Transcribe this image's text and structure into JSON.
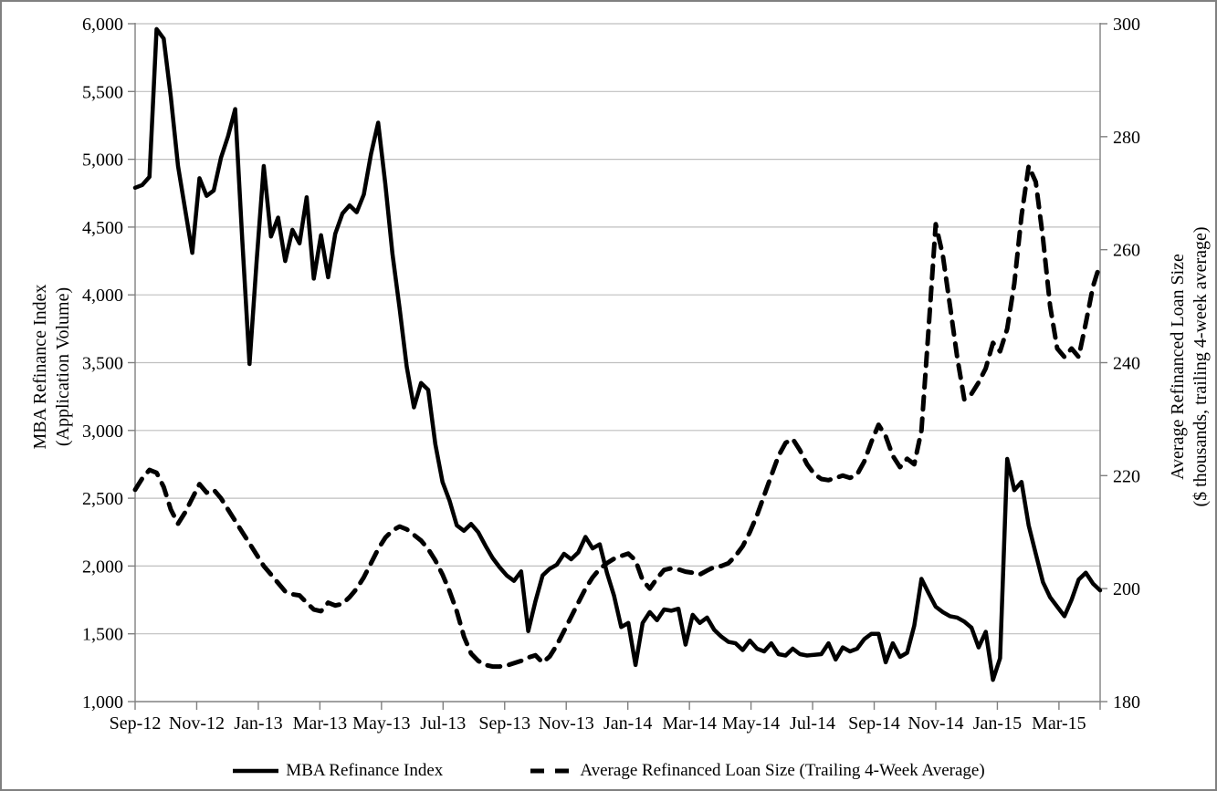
{
  "chart_data": {
    "type": "line",
    "title": "",
    "x_unit": "week",
    "x_range_label": "Sep-2012 through early Apr-2015, weekly observations",
    "x_tick_labels": [
      "Sep-12",
      "Nov-12",
      "Jan-13",
      "Mar-13",
      "May-13",
      "Jul-13",
      "Sep-13",
      "Nov-13",
      "Jan-14",
      "Mar-14",
      "May-14",
      "Jul-14",
      "Sep-14",
      "Nov-14",
      "Jan-15",
      "Mar-15"
    ],
    "grid": "horizontal",
    "legend_position": "bottom",
    "left_axis": {
      "title_line1": "MBA Refinance Index",
      "title_line2": "(Application Volume)",
      "min": 1000,
      "max": 6000,
      "step": 500,
      "tick_labels": [
        "1,000",
        "1,500",
        "2,000",
        "2,500",
        "3,000",
        "3,500",
        "4,000",
        "4,500",
        "5,000",
        "5,500",
        "6,000"
      ]
    },
    "right_axis": {
      "title_line1": "Average Refinanced Loan Size",
      "title_line2": "($ thousands, trailing 4-week average)",
      "min": 180,
      "max": 300,
      "step": 20,
      "tick_labels": [
        "180",
        "200",
        "220",
        "240",
        "260",
        "280",
        "300"
      ]
    },
    "series": [
      {
        "name": "MBA Refinance Index",
        "axis": "left",
        "style": "solid",
        "color": "#000000",
        "values": [
          4790,
          4810,
          4870,
          5960,
          5890,
          5460,
          4950,
          4630,
          4310,
          4860,
          4730,
          4770,
          5010,
          5170,
          5370,
          4400,
          3490,
          4250,
          4950,
          4430,
          4570,
          4250,
          4480,
          4380,
          4720,
          4120,
          4440,
          4130,
          4450,
          4600,
          4660,
          4610,
          4740,
          5040,
          5270,
          4820,
          4300,
          3900,
          3470,
          3170,
          3350,
          3300,
          2900,
          2620,
          2480,
          2300,
          2260,
          2310,
          2250,
          2150,
          2060,
          1990,
          1930,
          1890,
          1960,
          1520,
          1740,
          1930,
          1980,
          2010,
          2090,
          2050,
          2100,
          2215,
          2130,
          2160,
          1950,
          1780,
          1550,
          1580,
          1270,
          1580,
          1660,
          1600,
          1680,
          1670,
          1685,
          1420,
          1640,
          1580,
          1620,
          1530,
          1480,
          1440,
          1430,
          1380,
          1450,
          1390,
          1370,
          1430,
          1350,
          1340,
          1390,
          1350,
          1340,
          1345,
          1350,
          1430,
          1310,
          1400,
          1370,
          1390,
          1460,
          1500,
          1500,
          1290,
          1430,
          1330,
          1360,
          1560,
          1905,
          1800,
          1700,
          1660,
          1630,
          1620,
          1590,
          1545,
          1400,
          1515,
          1160,
          1320,
          2790,
          2560,
          2620,
          2300,
          2090,
          1880,
          1770,
          1700,
          1630,
          1750,
          1900,
          1950,
          1870,
          1820
        ]
      },
      {
        "name": "Average Refinanced Loan Size (Trailing 4-Week Average)",
        "axis": "right",
        "style": "dashed",
        "color": "#000000",
        "values": [
          217.5,
          219.5,
          221.0,
          220.5,
          218.0,
          214.0,
          211.5,
          213.5,
          216.0,
          218.5,
          217.0,
          217.5,
          216.0,
          214.0,
          212.0,
          210.0,
          208.0,
          206.0,
          204.0,
          202.5,
          201.0,
          199.5,
          199.0,
          198.8,
          197.5,
          196.3,
          196.0,
          197.5,
          197.0,
          197.3,
          198.5,
          200.0,
          202.0,
          204.5,
          207.0,
          209.0,
          210.3,
          211.0,
          210.5,
          209.5,
          208.5,
          207.0,
          205.0,
          202.5,
          199.5,
          196.0,
          191.5,
          188.5,
          187.2,
          186.5,
          186.2,
          186.2,
          186.4,
          186.8,
          187.2,
          187.8,
          188.2,
          186.9,
          188.0,
          190.0,
          192.5,
          195.0,
          197.5,
          200.0,
          202.0,
          203.5,
          204.5,
          205.3,
          205.8,
          206.2,
          205.0,
          201.5,
          200.0,
          201.8,
          203.3,
          203.6,
          203.4,
          203.0,
          202.8,
          202.5,
          203.2,
          203.8,
          204.0,
          204.5,
          205.8,
          207.5,
          210.0,
          213.0,
          216.5,
          220.0,
          223.5,
          225.8,
          226.5,
          224.5,
          222.0,
          220.3,
          219.4,
          219.2,
          219.6,
          220.0,
          219.6,
          220.2,
          222.5,
          226.0,
          229.0,
          227.0,
          223.5,
          221.5,
          223.0,
          222.0,
          228.0,
          246.0,
          264.5,
          259.0,
          250.0,
          241.0,
          233.5,
          234.5,
          236.5,
          239.0,
          243.5,
          242.0,
          246.0,
          254.0,
          266.0,
          274.8,
          272.0,
          262.0,
          250.0,
          242.5,
          241.0,
          242.5,
          241.0,
          247.0,
          253.5,
          257.5
        ]
      }
    ],
    "legend": {
      "item1_label": "MBA Refinance Index",
      "item2_label": "Average Refinanced Loan Size (Trailing 4-Week Average)"
    },
    "colors": {
      "line": "#000000",
      "gridline": "#BFBFBF",
      "axis": "#808080",
      "text": "#000000",
      "frame_border": "#808080",
      "background": "#FFFFFF"
    }
  }
}
